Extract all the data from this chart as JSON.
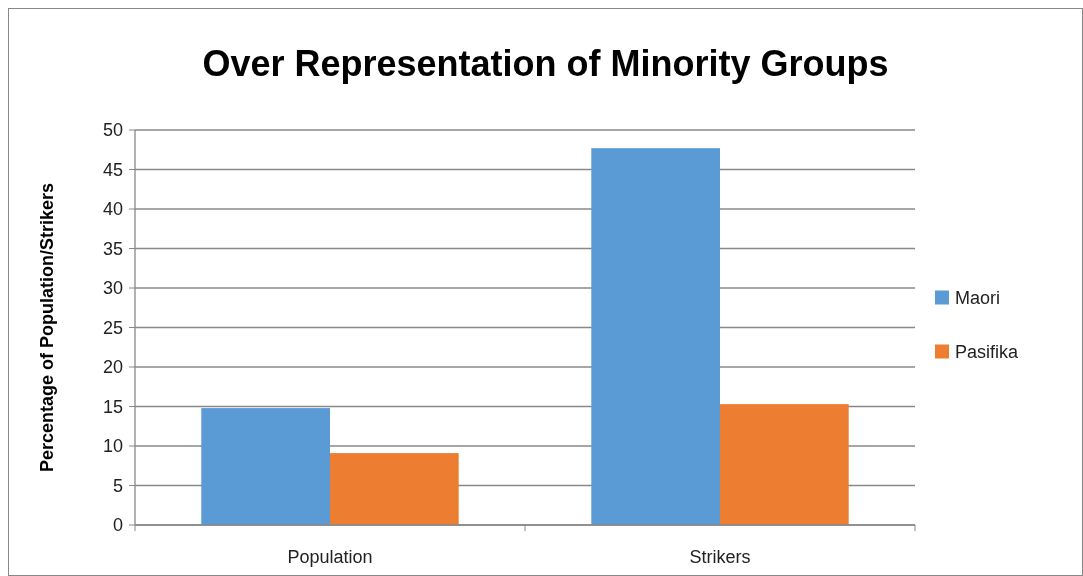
{
  "chart_data": {
    "type": "bar",
    "title": "Over Representation of Minority Groups",
    "ylabel": "Percentage of Population/Strikers",
    "categories": [
      "Population",
      "Strikers"
    ],
    "series": [
      {
        "name": "Maori",
        "color": "#5b9bd5",
        "values": [
          14.8,
          47.7
        ]
      },
      {
        "name": "Pasifika",
        "color": "#ed7d31",
        "values": [
          9.1,
          15.3
        ]
      }
    ],
    "ylim": [
      0,
      50
    ],
    "yticks": [
      0,
      5,
      10,
      15,
      20,
      25,
      30,
      35,
      40,
      45,
      50
    ],
    "grid": "y",
    "legend": "right"
  }
}
